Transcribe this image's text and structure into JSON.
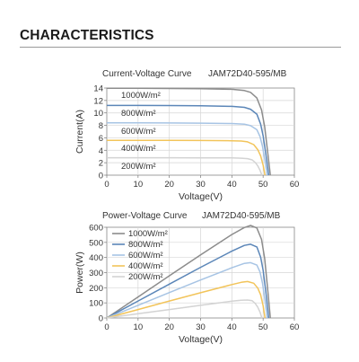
{
  "heading": "CHARACTERISTICS",
  "colors": {
    "1000": "#8c8c8c",
    "800": "#5b86b8",
    "600": "#a7c4e4",
    "400": "#f2c45a",
    "200": "#d3d3d3"
  },
  "chart_data": [
    {
      "type": "line",
      "title": "Current-Voltage Curve",
      "model": "JAM72D40-595/MB",
      "xlabel": "Voltage(V)",
      "ylabel": "Current(A)",
      "xlim": [
        0,
        60
      ],
      "ylim": [
        0,
        14
      ],
      "xticks": [
        "0",
        "10",
        "20",
        "30",
        "40",
        "50",
        "60"
      ],
      "yticks": [
        "0",
        "2",
        "4",
        "6",
        "8",
        "10",
        "12",
        "14"
      ],
      "grid": true,
      "legend": "inline-labels",
      "series": [
        {
          "name": "1000W/m²",
          "key": "1000",
          "x": [
            0,
            10,
            20,
            30,
            40,
            44,
            46,
            48,
            49.5,
            50.5,
            51.5,
            52.3
          ],
          "y": [
            13.95,
            13.95,
            13.93,
            13.9,
            13.8,
            13.6,
            13.3,
            12.4,
            10.5,
            7.8,
            3.5,
            0
          ]
        },
        {
          "name": "800W/m²",
          "key": "800",
          "x": [
            0,
            10,
            20,
            30,
            40,
            44,
            46,
            48,
            49.2,
            50,
            51,
            51.8
          ],
          "y": [
            11.2,
            11.2,
            11.18,
            11.15,
            11.05,
            10.9,
            10.6,
            9.8,
            8.2,
            6.3,
            3.0,
            0
          ]
        },
        {
          "name": "600W/m²",
          "key": "600",
          "x": [
            0,
            10,
            20,
            30,
            40,
            44,
            46,
            48,
            49,
            49.8,
            50.6,
            51.3
          ],
          "y": [
            8.4,
            8.4,
            8.38,
            8.35,
            8.3,
            8.2,
            7.95,
            7.3,
            6.2,
            4.6,
            2.3,
            0
          ]
        },
        {
          "name": "400W/m²",
          "key": "400",
          "x": [
            0,
            10,
            20,
            30,
            40,
            43,
            45,
            47,
            48.3,
            49.2,
            50,
            50.6
          ],
          "y": [
            5.6,
            5.6,
            5.59,
            5.57,
            5.53,
            5.48,
            5.35,
            4.9,
            4.1,
            3.1,
            1.6,
            0
          ]
        },
        {
          "name": "200W/m²",
          "key": "200",
          "x": [
            0,
            10,
            20,
            30,
            40,
            43,
            45,
            46.5,
            47.5,
            48.3,
            49,
            49.6
          ],
          "y": [
            2.8,
            2.8,
            2.8,
            2.79,
            2.77,
            2.73,
            2.65,
            2.45,
            2.0,
            1.5,
            0.8,
            0
          ]
        }
      ]
    },
    {
      "type": "line",
      "title": "Power-Voltage Curve",
      "model": "JAM72D40-595/MB",
      "xlabel": "Voltage(V)",
      "ylabel": "Power(W)",
      "xlim": [
        0,
        60
      ],
      "ylim": [
        0,
        600
      ],
      "xticks": [
        "0",
        "10",
        "20",
        "30",
        "40",
        "50",
        "60"
      ],
      "yticks": [
        "0",
        "100",
        "200",
        "300",
        "400",
        "500",
        "600"
      ],
      "grid": true,
      "legend": "top-left",
      "series": [
        {
          "name": "1000W/m²",
          "key": "1000",
          "x": [
            0,
            10,
            20,
            30,
            40,
            44,
            46,
            48,
            49.5,
            50.5,
            51.5,
            52.3
          ],
          "y": [
            0,
            139,
            279,
            417,
            552,
            598,
            612,
            595,
            520,
            394,
            180,
            0
          ]
        },
        {
          "name": "800W/m²",
          "key": "800",
          "x": [
            0,
            10,
            20,
            30,
            40,
            44,
            46,
            48,
            49.2,
            50,
            51,
            51.8
          ],
          "y": [
            0,
            112,
            224,
            335,
            442,
            480,
            488,
            470,
            403,
            315,
            153,
            0
          ]
        },
        {
          "name": "600W/m²",
          "key": "600",
          "x": [
            0,
            10,
            20,
            30,
            40,
            44,
            46,
            48,
            49,
            49.8,
            50.6,
            51.3
          ],
          "y": [
            0,
            84,
            168,
            251,
            332,
            361,
            366,
            350,
            304,
            229,
            116,
            0
          ]
        },
        {
          "name": "400W/m²",
          "key": "400",
          "x": [
            0,
            10,
            20,
            30,
            40,
            43,
            45,
            47,
            48.3,
            49.2,
            50,
            50.6
          ],
          "y": [
            0,
            56,
            112,
            167,
            221,
            236,
            241,
            230,
            198,
            153,
            80,
            0
          ]
        },
        {
          "name": "200W/m²",
          "key": "200",
          "x": [
            0,
            10,
            20,
            30,
            40,
            43,
            45,
            46.5,
            47.5,
            48.3,
            49,
            49.6
          ],
          "y": [
            0,
            28,
            56,
            84,
            111,
            117,
            119,
            114,
            95,
            72,
            39,
            0
          ]
        }
      ]
    }
  ]
}
